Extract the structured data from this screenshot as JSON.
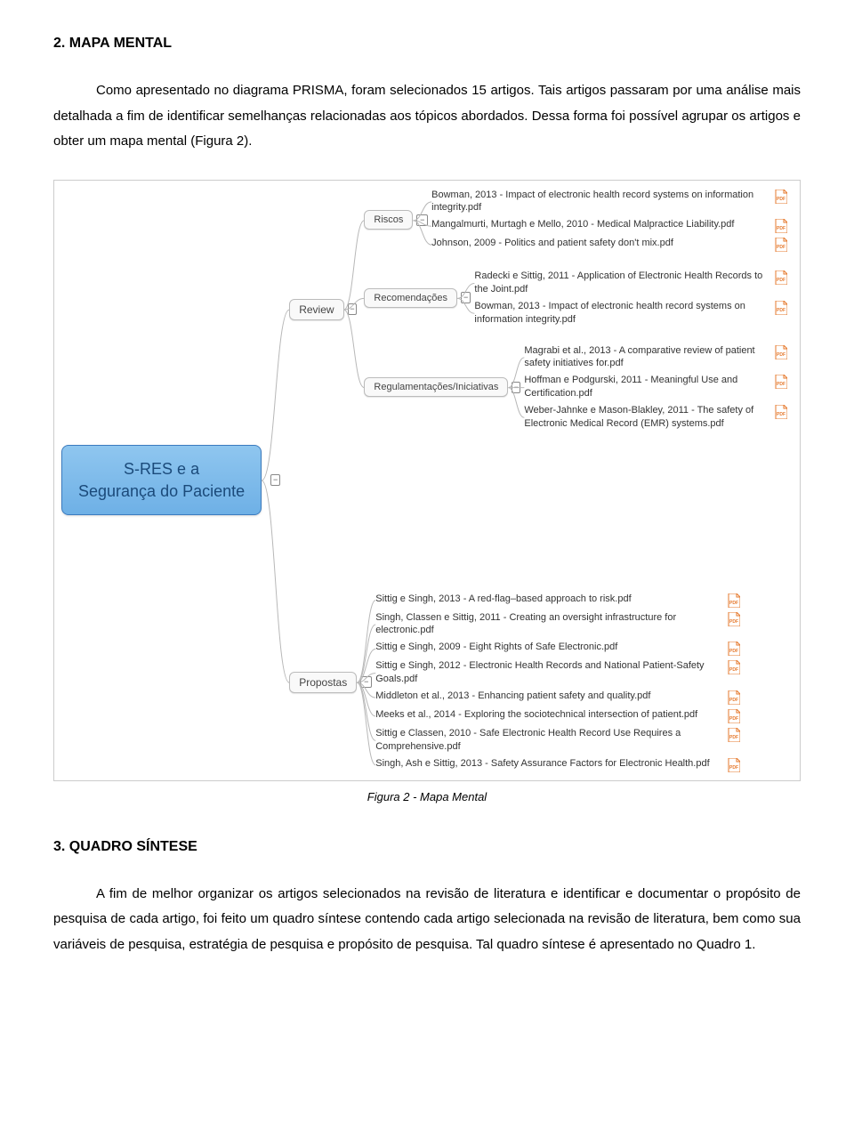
{
  "section2": {
    "heading": "2.  MAPA MENTAL",
    "paragraph": "Como apresentado no diagrama PRISMA, foram selecionados 15 artigos. Tais artigos passaram por uma análise mais detalhada a fim de identificar semelhanças relacionadas aos tópicos abordados. Dessa forma foi possível agrupar os artigos e obter um mapa mental (Figura 2)."
  },
  "figure": {
    "caption": "Figura 2 - Mapa Mental",
    "root_line1": "S-RES e a",
    "root_line2": "Segurança do Paciente",
    "colors": {
      "root_bg_top": "#8fc6ef",
      "root_bg_bottom": "#6eb0e6",
      "root_border": "#3b7bbf",
      "root_text": "#1b4a7a",
      "node_bg": "#f9f9f9",
      "node_border": "#bbbbbb",
      "leaf_text": "#333333",
      "pdf_fill": "#ffffff",
      "pdf_stroke": "#e67a2e",
      "pdf_label": "#e67a2e",
      "connector": "#b8b8b8"
    },
    "branches": [
      {
        "label": "Review",
        "subs": [
          {
            "label": "Riscos",
            "leaves": [
              "Bowman, 2013 - Impact of electronic health record systems on information integrity.pdf",
              "Mangalmurti, Murtagh e Mello, 2010 - Medical Malpractice Liability.pdf",
              "Johnson, 2009 - Politics and patient safety don't mix.pdf"
            ]
          },
          {
            "label": "Recomendações",
            "leaves": [
              "Radecki e Sittig, 2011 - Application of Electronic Health Records to the Joint.pdf",
              "Bowman, 2013 - Impact of electronic health record systems on information integrity.pdf"
            ]
          },
          {
            "label": "Regulamentações/Iniciativas",
            "leaves": [
              "Magrabi et al., 2013 - A comparative review of patient safety initiatives for.pdf",
              "Hoffman e Podgurski, 2011 - Meaningful Use and Certification.pdf",
              "Weber-Jahnke e Mason-Blakley, 2011 - The safety of Electronic Medical Record (EMR) systems.pdf"
            ]
          }
        ]
      },
      {
        "label": "Propostas",
        "leaves": [
          "Sittig e Singh, 2013 - A red-flag–based approach to risk.pdf",
          "Singh, Classen e Sittig, 2011 - Creating an oversight infrastructure for electronic.pdf",
          "Sittig e Singh, 2009 - Eight Rights of Safe Electronic.pdf",
          "Sittig e Singh, 2012 - Electronic Health Records and National Patient-Safety Goals.pdf",
          "Middleton et al., 2013 - Enhancing patient safety and quality.pdf",
          "Meeks et al., 2014 - Exploring the sociotechnical intersection of patient.pdf",
          "Sittig e Classen, 2010 - Safe Electronic Health Record Use Requires a Comprehensive.pdf",
          "Singh, Ash e Sittig, 2013 - Safety Assurance Factors for Electronic Health.pdf"
        ]
      }
    ]
  },
  "section3": {
    "heading": "3.  QUADRO SÍNTESE",
    "paragraph": "A fim de melhor organizar os artigos selecionados na revisão de literatura e identificar e documentar o propósito de pesquisa de cada artigo, foi feito um quadro síntese contendo cada artigo selecionada na revisão de literatura, bem como sua variáveis de pesquisa, estratégia de pesquisa e propósito de pesquisa. Tal quadro síntese é apresentado no Quadro 1."
  }
}
